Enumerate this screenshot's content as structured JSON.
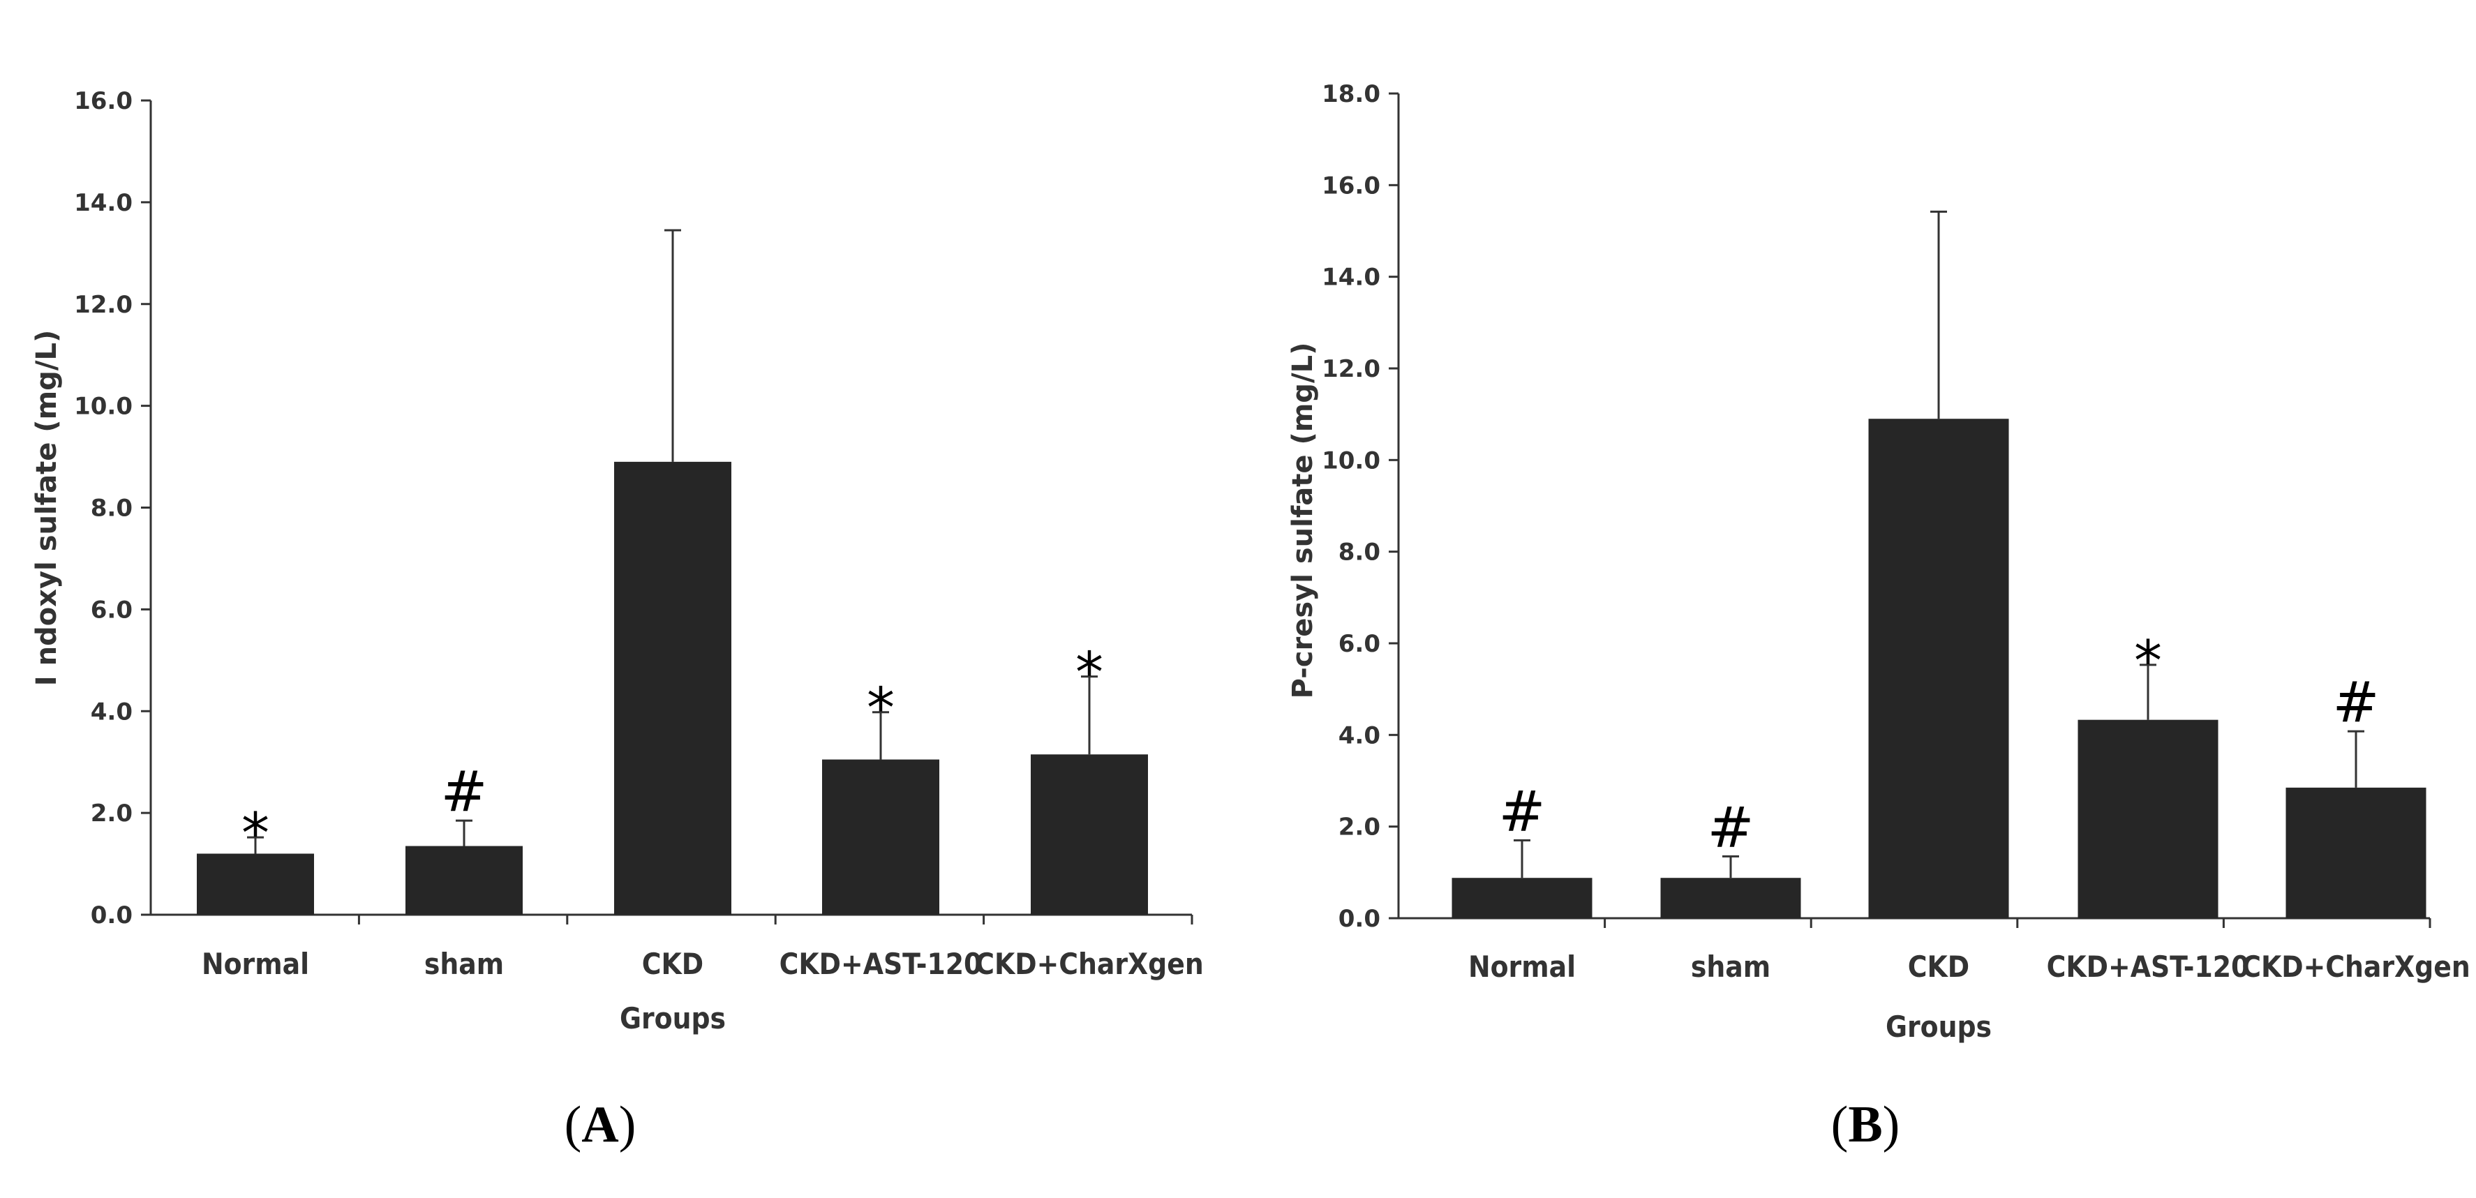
{
  "chart_data": [
    {
      "type": "bar",
      "panel_label": "A",
      "title": "",
      "xlabel": "Groups",
      "ylabel": "I ndoxyl sulfate (mg/L)",
      "ylim": [
        0,
        16
      ],
      "yticks": [
        0,
        2,
        4,
        6,
        8,
        10,
        12,
        14,
        16
      ],
      "ytick_labels": [
        "0.0",
        "2.0",
        "4.0",
        "6.0",
        "8.0",
        "10.0",
        "12.0",
        "14.0",
        "16.0"
      ],
      "categories": [
        "Normal",
        "sham",
        "CKD",
        "CKD+AST-120",
        "CKD+CharXgen"
      ],
      "values": [
        1.2,
        1.35,
        8.9,
        3.05,
        3.15
      ],
      "error_upper": [
        1.52,
        1.85,
        13.45,
        3.98,
        4.68
      ],
      "markers": [
        "*",
        "#",
        "",
        "*",
        "*"
      ],
      "bar_color": "#262626",
      "grid": false
    },
    {
      "type": "bar",
      "panel_label": "B",
      "title": "",
      "xlabel": "Groups",
      "ylabel": "P-cresyl sulfate (mg/L)",
      "ylim": [
        0,
        18
      ],
      "yticks": [
        0,
        2,
        4,
        6,
        8,
        10,
        12,
        14,
        16,
        18
      ],
      "ytick_labels": [
        "0.0",
        "2.0",
        "4.0",
        "6.0",
        "8.0",
        "10.0",
        "12.0",
        "14.0",
        "16.0",
        "18.0"
      ],
      "categories": [
        "Normal",
        "sham",
        "CKD",
        "CKD+AST-120",
        "CKD+CharXgen"
      ],
      "values": [
        0.88,
        0.88,
        10.9,
        4.33,
        2.85
      ],
      "error_upper": [
        1.7,
        1.35,
        15.42,
        5.53,
        4.08
      ],
      "markers": [
        "#",
        "#",
        "",
        "*",
        "#"
      ],
      "bar_color": "#262626",
      "grid": false
    }
  ]
}
